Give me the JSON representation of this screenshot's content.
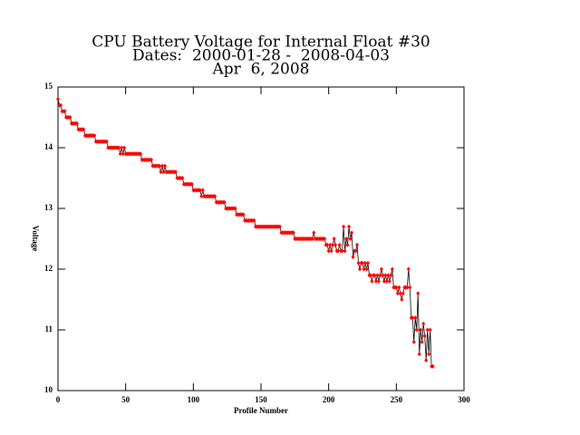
{
  "chart_data": {
    "type": "line",
    "title": "CPU Battery Voltage for Internal Float #30",
    "subtitle": "Dates:  2000-01-28 -  2008-04-03",
    "date": "Apr  6, 2008",
    "xlabel": "Profile Number",
    "ylabel": "Voltage",
    "xlim": [
      0,
      300
    ],
    "xticks": [
      0,
      50,
      100,
      150,
      200,
      250,
      300
    ],
    "ylim": [
      10,
      15
    ],
    "yticks": [
      10,
      11,
      12,
      13,
      14,
      15
    ],
    "line_color": "#000000",
    "marker_color": "#ff0000",
    "values": [
      14.8,
      14.7,
      14.7,
      14.6,
      14.6,
      14.6,
      14.5,
      14.5,
      14.5,
      14.5,
      14.4,
      14.4,
      14.4,
      14.4,
      14.4,
      14.3,
      14.3,
      14.3,
      14.3,
      14.3,
      14.2,
      14.2,
      14.2,
      14.2,
      14.2,
      14.2,
      14.2,
      14.2,
      14.1,
      14.1,
      14.1,
      14.1,
      14.1,
      14.1,
      14.1,
      14.1,
      14.1,
      14.0,
      14.0,
      14.0,
      14.0,
      14.0,
      14.0,
      14.0,
      14.0,
      14.0,
      13.9,
      14.0,
      13.9,
      14.0,
      13.9,
      13.9,
      13.9,
      13.9,
      13.9,
      13.9,
      13.9,
      13.9,
      13.9,
      13.9,
      13.9,
      13.9,
      13.8,
      13.8,
      13.8,
      13.8,
      13.8,
      13.8,
      13.8,
      13.8,
      13.7,
      13.7,
      13.7,
      13.7,
      13.7,
      13.7,
      13.6,
      13.7,
      13.6,
      13.7,
      13.6,
      13.6,
      13.6,
      13.6,
      13.6,
      13.6,
      13.6,
      13.6,
      13.5,
      13.5,
      13.5,
      13.5,
      13.5,
      13.4,
      13.4,
      13.4,
      13.4,
      13.4,
      13.4,
      13.4,
      13.3,
      13.3,
      13.3,
      13.3,
      13.3,
      13.3,
      13.2,
      13.3,
      13.2,
      13.2,
      13.2,
      13.2,
      13.2,
      13.2,
      13.2,
      13.2,
      13.2,
      13.1,
      13.1,
      13.1,
      13.1,
      13.1,
      13.1,
      13.1,
      13.0,
      13.0,
      13.0,
      13.0,
      13.0,
      13.0,
      13.0,
      13.0,
      12.9,
      12.9,
      12.9,
      12.9,
      12.9,
      12.9,
      12.8,
      12.8,
      12.8,
      12.8,
      12.8,
      12.8,
      12.8,
      12.8,
      12.7,
      12.7,
      12.7,
      12.7,
      12.7,
      12.7,
      12.7,
      12.7,
      12.7,
      12.7,
      12.7,
      12.7,
      12.7,
      12.7,
      12.7,
      12.7,
      12.7,
      12.7,
      12.7,
      12.6,
      12.6,
      12.6,
      12.6,
      12.6,
      12.6,
      12.6,
      12.6,
      12.6,
      12.6,
      12.5,
      12.5,
      12.5,
      12.5,
      12.5,
      12.5,
      12.5,
      12.5,
      12.5,
      12.5,
      12.5,
      12.5,
      12.5,
      12.5,
      12.6,
      12.5,
      12.5,
      12.5,
      12.5,
      12.5,
      12.5,
      12.5,
      12.5,
      12.4,
      12.4,
      12.3,
      12.4,
      12.3,
      12.4,
      12.5,
      12.4,
      12.3,
      12.3,
      12.4,
      12.3,
      12.3,
      12.7,
      12.3,
      12.5,
      12.4,
      12.7,
      12.5,
      12.6,
      12.2,
      12.3,
      12.3,
      12.4,
      12.1,
      12.0,
      12.1,
      12.1,
      12.0,
      12.1,
      12.0,
      12.1,
      11.9,
      11.9,
      11.8,
      11.9,
      11.9,
      11.8,
      11.9,
      11.8,
      11.9,
      12.0,
      11.9,
      11.8,
      11.9,
      11.8,
      11.9,
      11.8,
      11.9,
      12.0,
      11.7,
      11.7,
      11.7,
      11.6,
      11.7,
      11.6,
      11.5,
      11.6,
      11.7,
      11.7,
      11.7,
      12.0,
      11.7,
      11.2,
      11.2,
      10.8,
      11.2,
      11.0,
      11.6,
      10.6,
      11.0,
      10.8,
      11.1,
      10.9,
      10.5,
      11.0,
      10.6,
      11.0,
      10.4,
      10.4
    ]
  }
}
